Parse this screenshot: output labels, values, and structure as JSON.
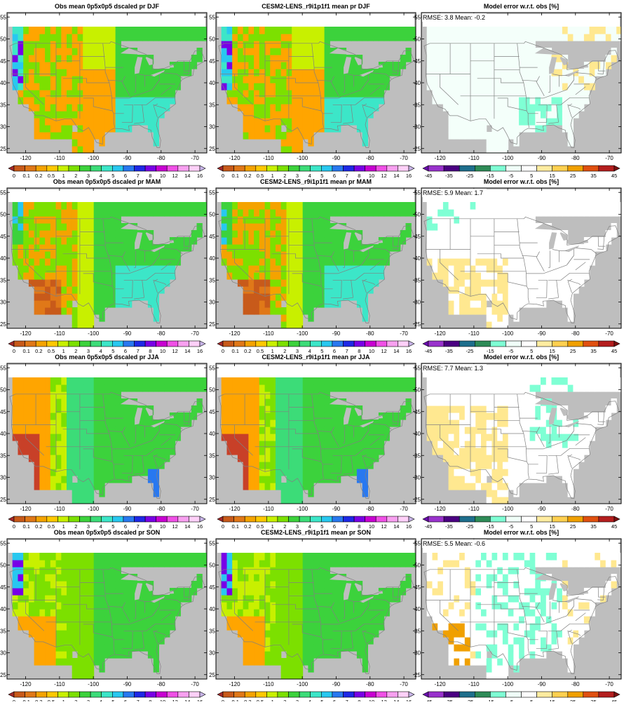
{
  "seasons": [
    "DJF",
    "MAM",
    "JJA",
    "SON"
  ],
  "panel_titles": [
    [
      "Obs mean 0p5x0p5 dscaled pr DJF",
      "CESM2-LENS_r9i1p1f1 mean pr DJF",
      "Model error w.r.t. obs [%]"
    ],
    [
      "Obs mean 0p5x0p5 dscaled pr MAM",
      "CESM2-LENS_r9i1p1f1 mean pr MAM",
      "Model error w.r.t. obs [%]"
    ],
    [
      "Obs mean 0p5x0p5 dscaled pr JJA",
      "CESM2-LENS_r9i1p1f1 mean pr JJA",
      "Model error w.r.t. obs [%]"
    ],
    [
      "Obs mean 0p5x0p5 dscaled pr SON",
      "CESM2-LENS_r9i1p1f1 mean pr SON",
      "Model error w.r.t. obs [%]"
    ]
  ],
  "error_stats": [
    "RMSE: 3.8  Mean: -0.2",
    "RMSE: 5.9  Mean: 1.7",
    "RMSE: 7.7  Mean: 1.3",
    "RMSE: 5.5  Mean: -0.6"
  ],
  "lat_ticks": [
    "25",
    "30",
    "35",
    "40",
    "45",
    "50",
    "55"
  ],
  "lon_ticks": [
    "-120",
    "-110",
    "-100",
    "-90",
    "-80",
    "-70"
  ],
  "precip_colorbar": {
    "labels": [
      "0",
      "0.1",
      "0.2",
      "0.5",
      "1",
      "2",
      "3",
      "4",
      "5",
      "6",
      "7",
      "8",
      "10",
      "12",
      "14",
      "16"
    ],
    "colors": [
      "#a52a2a",
      "#c85a1a",
      "#e07818",
      "#f4a300",
      "#ffc800",
      "#c8f000",
      "#7ce000",
      "#3cd23c",
      "#3cdc78",
      "#3ce6c8",
      "#28c8f0",
      "#2878f0",
      "#1e28e6",
      "#7800e6",
      "#c800d2",
      "#f050e6",
      "#f8a0f0",
      "#ffd0f8",
      "#c8b4e8"
    ]
  },
  "error_colorbar": {
    "labels": [
      "-45",
      "-35",
      "-25",
      "-15",
      "-5",
      "5",
      "15",
      "25",
      "35",
      "45"
    ],
    "colors": [
      "#6a0dad",
      "#9932cc",
      "#4b0082",
      "#1e6e8c",
      "#2e8b57",
      "#7fffd4",
      "#f0fff8",
      "#ffffff",
      "#ffeca0",
      "#ffd050",
      "#f0a000",
      "#e05010",
      "#b41e1e",
      "#7a1010"
    ]
  },
  "map_colors": {
    "ocean": "#bebebe",
    "obs_djf": [
      "#ffa500",
      "#c8f000",
      "#7ce000",
      "#3cd23c",
      "#3ce6c8"
    ],
    "obs_mam": [
      "#f4a300",
      "#c8f000",
      "#7ce000",
      "#3cd23c",
      "#3ce6c8"
    ],
    "obs_jja": [
      "#c84028",
      "#ffa500",
      "#c8f000",
      "#7ce000",
      "#3cd23c",
      "#3cdc78"
    ],
    "obs_son": [
      "#ffa500",
      "#c8f000",
      "#7ce000",
      "#3cd23c",
      "#3cdc78"
    ],
    "err_tint": [
      "#f4fffa",
      "#ffe890",
      "#7fffd4"
    ]
  }
}
